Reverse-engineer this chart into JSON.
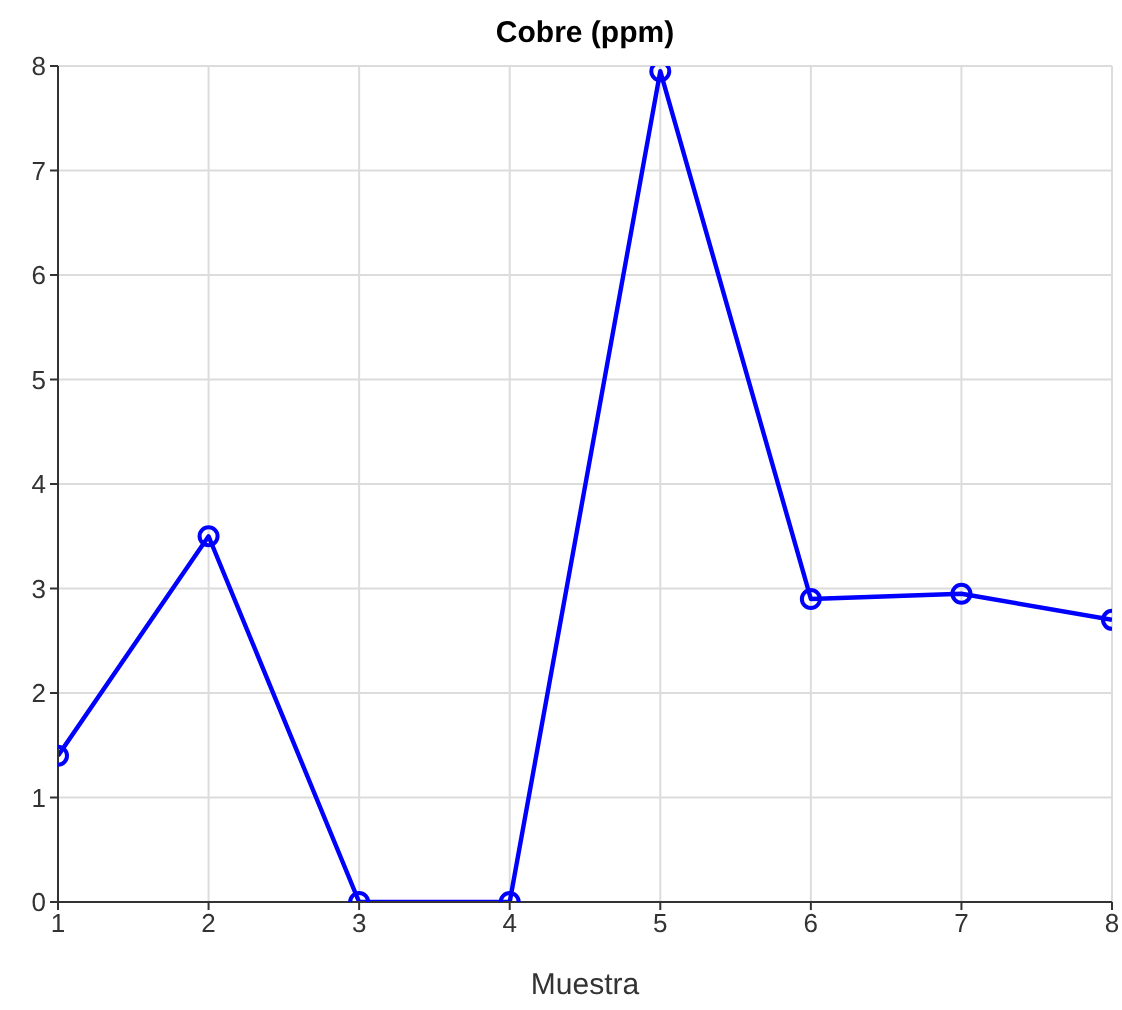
{
  "chart_data": {
    "type": "line",
    "title": "Cobre (ppm)",
    "xlabel": "Muestra",
    "x": [
      1,
      2,
      3,
      4,
      5,
      6,
      7,
      8
    ],
    "series": [
      {
        "color": "#0000ff",
        "values": [
          1.4,
          3.5,
          0,
          0,
          7.95,
          2.9,
          2.95,
          2.7
        ]
      }
    ],
    "xlim": [
      1,
      8
    ],
    "xticks": [
      1,
      2,
      3,
      4,
      5,
      6,
      7,
      8
    ],
    "ylim": [
      0,
      8
    ],
    "yticks": [
      0,
      1,
      2,
      3,
      4,
      5,
      6,
      7,
      8
    ],
    "grid": true,
    "marker": "circle",
    "line_style": "solid"
  }
}
